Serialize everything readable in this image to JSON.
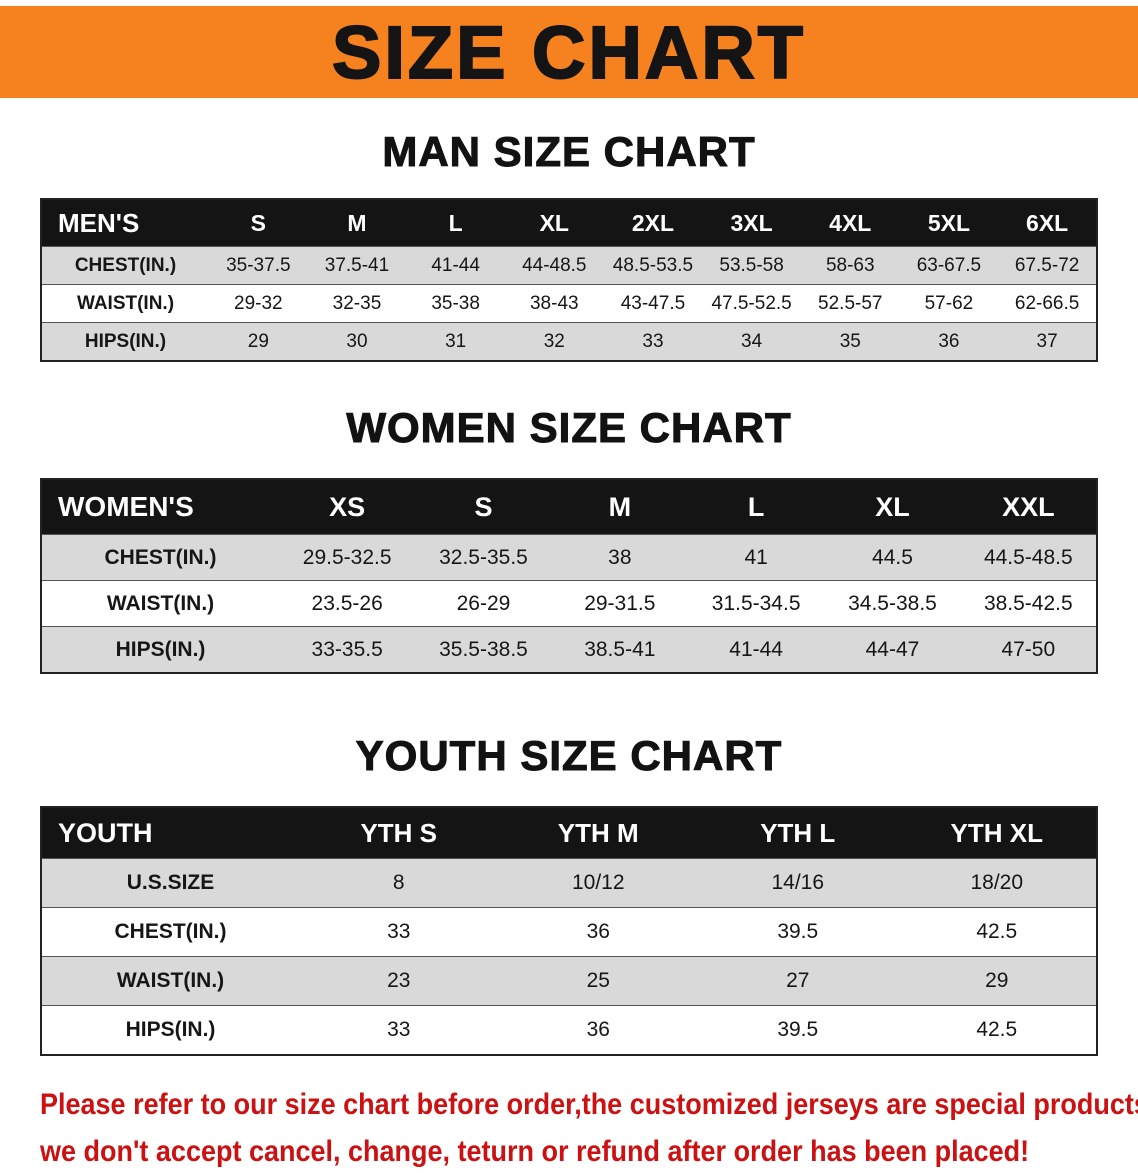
{
  "banner": {
    "title": "SIZE CHART"
  },
  "sections": {
    "men": {
      "heading": "MAN SIZE CHART",
      "header": [
        "MEN'S",
        "S",
        "M",
        "L",
        "XL",
        "2XL",
        "3XL",
        "4XL",
        "5XL",
        "6XL"
      ],
      "rows": [
        {
          "label": "CHEST(IN.)",
          "values": [
            "35-37.5",
            "37.5-41",
            "41-44",
            "44-48.5",
            "48.5-53.5",
            "53.5-58",
            "58-63",
            "63-67.5",
            "67.5-72"
          ]
        },
        {
          "label": "WAIST(IN.)",
          "values": [
            "29-32",
            "32-35",
            "35-38",
            "38-43",
            "43-47.5",
            "47.5-52.5",
            "52.5-57",
            "57-62",
            "62-66.5"
          ]
        },
        {
          "label": "HIPS(IN.)",
          "values": [
            "29",
            "30",
            "31",
            "32",
            "33",
            "34",
            "35",
            "36",
            "37"
          ]
        }
      ]
    },
    "women": {
      "heading": "WOMEN SIZE CHART",
      "header": [
        "WOMEN'S",
        "XS",
        "S",
        "M",
        "L",
        "XL",
        "XXL"
      ],
      "rows": [
        {
          "label": "CHEST(IN.)",
          "values": [
            "29.5-32.5",
            "32.5-35.5",
            "38",
            "41",
            "44.5",
            "44.5-48.5"
          ]
        },
        {
          "label": "WAIST(IN.)",
          "values": [
            "23.5-26",
            "26-29",
            "29-31.5",
            "31.5-34.5",
            "34.5-38.5",
            "38.5-42.5"
          ]
        },
        {
          "label": "HIPS(IN.)",
          "values": [
            "33-35.5",
            "35.5-38.5",
            "38.5-41",
            "41-44",
            "44-47",
            "47-50"
          ]
        }
      ]
    },
    "youth": {
      "heading": "YOUTH SIZE CHART",
      "header": [
        "YOUTH",
        "YTH S",
        "YTH M",
        "YTH L",
        "YTH XL"
      ],
      "rows": [
        {
          "label": "U.S.SIZE",
          "values": [
            "8",
            "10/12",
            "14/16",
            "18/20"
          ]
        },
        {
          "label": "CHEST(IN.)",
          "values": [
            "33",
            "36",
            "39.5",
            "42.5"
          ]
        },
        {
          "label": "WAIST(IN.)",
          "values": [
            "23",
            "25",
            "27",
            "29"
          ]
        },
        {
          "label": "HIPS(IN.)",
          "values": [
            "33",
            "36",
            "39.5",
            "42.5"
          ]
        }
      ]
    }
  },
  "footer": {
    "line1": "Please refer to our size chart before order,the customized jerseys are special products,",
    "line2": "we don't accept cancel, change, teturn or refund after order has been placed!"
  },
  "colors": {
    "banner_bg": "#F5821E",
    "header_bg": "#141414",
    "row_alt": "#D9D9D9",
    "footer_text": "#CB1111"
  }
}
